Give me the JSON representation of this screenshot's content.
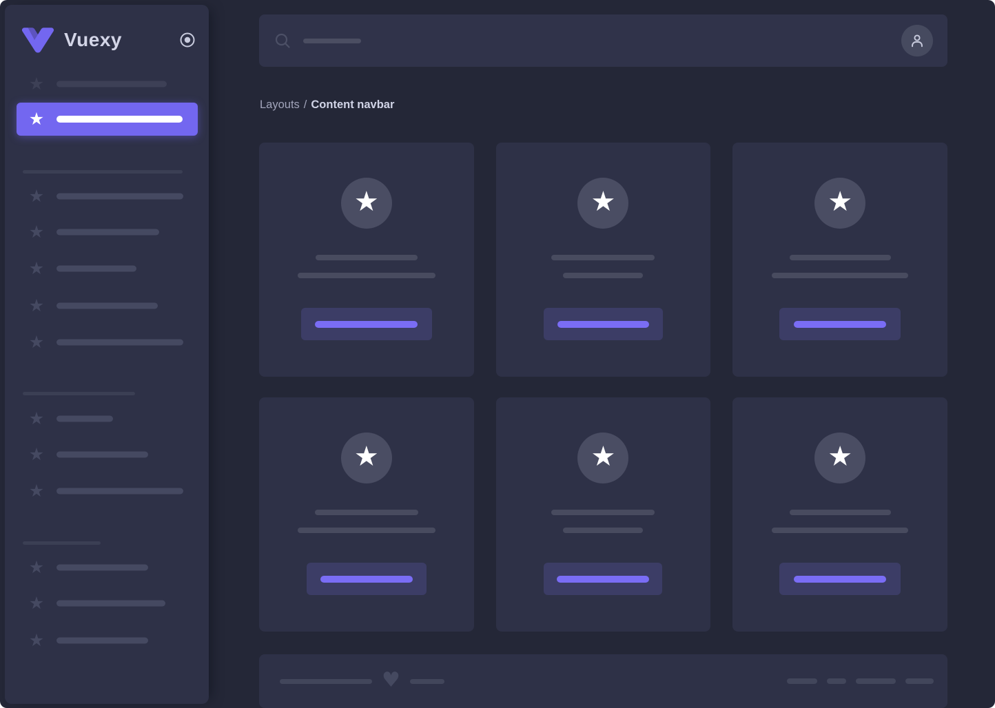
{
  "app": {
    "title": "Vuexy"
  },
  "colors": {
    "frame_bg": "#242737",
    "panel_bg": "#2e3147",
    "accent": "#7367f0",
    "accent_light": "#7a6df5",
    "button_bg": "#3c3d66",
    "skeleton": "#454961",
    "skeleton_dim": "#3d4056",
    "skeleton_header": "#3b3f54",
    "card_skeleton": "#484b5f",
    "card_avatar_bg": "#4a4d63",
    "navbar_bg": "#30334a",
    "navbar_avatar_bg": "#464a5f",
    "search_skeleton": "#4b4e62",
    "footer_skeleton": "#42465b",
    "heart": "#454960",
    "icon_light": "#c9ccde",
    "search_icon": "#4c5066",
    "text_primary": "#d3d5e7",
    "breadcrumb_text": "#a2a5bb",
    "breadcrumb_current": "#d0d3e6"
  },
  "icons": {
    "logo": "vuexy-v-logo",
    "pin": "radio-dot-icon",
    "search": "magnifier-icon",
    "user": "person-icon",
    "star": "★",
    "heart": "♥"
  },
  "sidebar": {
    "title": "Vuexy",
    "rows": [
      {
        "kind": "item",
        "center": 115,
        "line_w": 160,
        "dim": true
      },
      {
        "kind": "active",
        "center": 166,
        "line_w": 183
      },
      {
        "kind": "header",
        "center": 243,
        "line_w": 232
      },
      {
        "kind": "item",
        "center": 278,
        "line_w": 184
      },
      {
        "kind": "item",
        "center": 330,
        "line_w": 149
      },
      {
        "kind": "item",
        "center": 383,
        "line_w": 116
      },
      {
        "kind": "item",
        "center": 437,
        "line_w": 147
      },
      {
        "kind": "item",
        "center": 490,
        "line_w": 184
      },
      {
        "kind": "header",
        "center": 565,
        "line_w": 163
      },
      {
        "kind": "item",
        "center": 601,
        "line_w": 82
      },
      {
        "kind": "item",
        "center": 653,
        "line_w": 133
      },
      {
        "kind": "item",
        "center": 706,
        "line_w": 184
      },
      {
        "kind": "header",
        "center": 782,
        "line_w": 113
      },
      {
        "kind": "item",
        "center": 817,
        "line_w": 133
      },
      {
        "kind": "item",
        "center": 869,
        "line_w": 158
      },
      {
        "kind": "item",
        "center": 923,
        "line_w": 133
      }
    ]
  },
  "navbar": {
    "search_placeholder_w": 84
  },
  "breadcrumb": {
    "parent": "Layouts",
    "separator": "/",
    "current": "Content navbar"
  },
  "cards": [
    {
      "line1_w": 148,
      "line2_w": 200,
      "button_w": 190,
      "button_line_w": 149
    },
    {
      "line1_w": 150,
      "line2_w": 116,
      "button_w": 173,
      "button_line_w": 133
    },
    {
      "line1_w": 147,
      "line2_w": 198,
      "button_w": 176,
      "button_line_w": 134
    },
    {
      "line1_w": 150,
      "line2_w": 200,
      "button_w": 174,
      "button_line_w": 134
    },
    {
      "line1_w": 150,
      "line2_w": 116,
      "button_w": 172,
      "button_line_w": 134
    },
    {
      "line1_w": 147,
      "line2_w": 198,
      "button_w": 176,
      "button_line_w": 134
    }
  ],
  "footer": {
    "line_a_w": 134,
    "line_b_w": 50,
    "pills": [
      44,
      28,
      58,
      41
    ]
  }
}
